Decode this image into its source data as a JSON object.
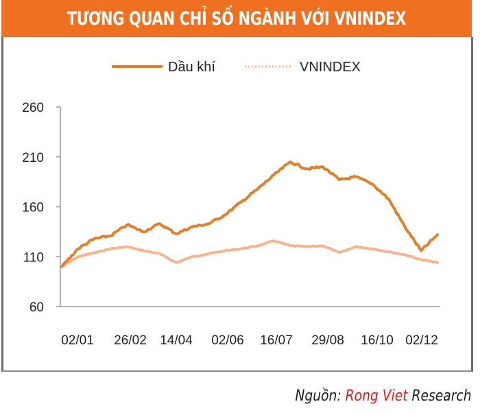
{
  "header": {
    "title": "TƯƠNG QUAN CHỈ SỐ NGÀNH VỚI VNINDEX"
  },
  "source": {
    "prefix": "Nguồn: ",
    "brand": "Rong Viet",
    "suffix": " Research"
  },
  "colors": {
    "header_bg": "#f07022",
    "series_oil": "#e07f2c",
    "series_vnindex": "#f8b48e",
    "brand_red": "#e3141b"
  },
  "chart_data": {
    "type": "line",
    "title": "TƯƠNG QUAN CHỈ SỐ NGÀNH VỚI VNINDEX",
    "xlabel": "",
    "ylabel": "",
    "ylim": [
      60,
      260
    ],
    "yticks": [
      260,
      210,
      160,
      110,
      60
    ],
    "xticks": [
      "02/01",
      "26/02",
      "14/04",
      "02/06",
      "16/07",
      "29/08",
      "16/10",
      "02/12"
    ],
    "grid": false,
    "legend": {
      "position": "top",
      "entries": [
        "Dầu khí",
        "VNINDEX"
      ]
    },
    "x": [
      "02/01",
      "15/01",
      "26/02",
      "20/03",
      "14/04",
      "28/04",
      "10/05",
      "02/06",
      "25/06",
      "16/07",
      "01/08",
      "15/08",
      "29/08",
      "10/09",
      "20/09",
      "05/10",
      "16/10",
      "01/11",
      "15/11",
      "02/12",
      "10/12",
      "18/12",
      "24/12",
      "28/12"
    ],
    "series": [
      {
        "name": "Dầu khí",
        "style": "solid",
        "values": [
          100,
          118,
          128,
          131,
          142,
          135,
          143,
          133,
          140,
          143,
          152,
          165,
          178,
          192,
          205,
          198,
          200,
          187,
          190,
          183,
          168,
          140,
          116,
          132
        ]
      },
      {
        "name": "VNINDEX",
        "style": "dotted",
        "values": [
          100,
          110,
          114,
          118,
          120,
          116,
          113,
          104,
          110,
          113,
          116,
          118,
          121,
          126,
          121,
          120,
          121,
          114,
          120,
          118,
          115,
          112,
          107,
          104
        ]
      }
    ]
  }
}
